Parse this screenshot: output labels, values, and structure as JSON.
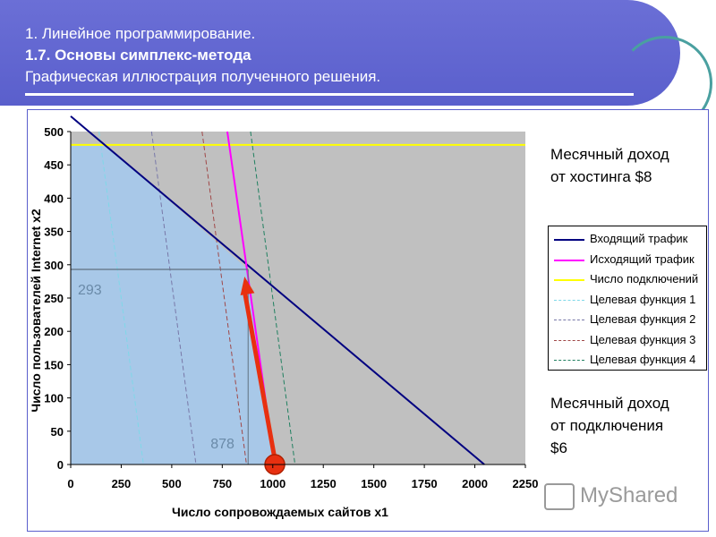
{
  "header": {
    "line1": "1. Линейное программирование.",
    "line2": "1.7. Основы симплекс-метода",
    "line3": "Графическая иллюстрация полученного решения."
  },
  "side_notes": {
    "hosting": [
      "Месячный доход",
      "от хостинга $8"
    ],
    "connection": [
      "Месячный доход",
      "от подключения",
      "$6"
    ]
  },
  "watermark": "MyShared",
  "colors": {
    "header": "#5a5fcc",
    "plot_bg": "#c0c0c0",
    "feasible": "#a8c8e8",
    "incoming": "#000080",
    "outgoing": "#ff00ff",
    "connections": "#ffff00",
    "arrow": "#e83010"
  },
  "chart_data": {
    "type": "line",
    "xlabel": "Число сопровождаемых сайтов x1",
    "ylabel": "Число пользователей Internet x2",
    "xlim": [
      0,
      2250
    ],
    "ylim": [
      0,
      500
    ],
    "xticks": [
      "0",
      "250",
      "500",
      "750",
      "1000",
      "1250",
      "1500",
      "1750",
      "2000",
      "2250"
    ],
    "yticks": [
      "0",
      "50",
      "100",
      "150",
      "200",
      "250",
      "300",
      "350",
      "400",
      "450",
      "500"
    ],
    "grid": false,
    "legend_position": "right",
    "series": [
      {
        "name": "Входящий трафик",
        "color": "#000080",
        "style": "solid",
        "x": [
          0,
          2047
        ],
        "y": [
          523,
          0
        ]
      },
      {
        "name": "Исходящий трафик",
        "color": "#ff00ff",
        "style": "solid",
        "x": [
          775,
          1010
        ],
        "y": [
          500,
          0
        ]
      },
      {
        "name": "Число подключений",
        "color": "#ffff00",
        "style": "solid",
        "x": [
          0,
          2250
        ],
        "y": [
          480,
          480
        ]
      },
      {
        "name": "Целевая функция 1",
        "color": "#7fd8e8",
        "style": "dashed",
        "x": [
          140,
          360
        ],
        "y": [
          500,
          0
        ]
      },
      {
        "name": "Целевая функция 2",
        "color": "#7878a8",
        "style": "dashed",
        "x": [
          400,
          620
        ],
        "y": [
          500,
          0
        ]
      },
      {
        "name": "Целевая функция 3",
        "color": "#a04848",
        "style": "dashed",
        "x": [
          650,
          870
        ],
        "y": [
          500,
          0
        ]
      },
      {
        "name": "Целевая функция 4",
        "color": "#208060",
        "style": "dashed",
        "x": [
          890,
          1110
        ],
        "y": [
          500,
          0
        ]
      }
    ],
    "optimum": {
      "x": 878,
      "y": 293,
      "x_label": "878",
      "y_label": "293"
    },
    "start_point": {
      "x": 1010,
      "y": 0
    }
  }
}
